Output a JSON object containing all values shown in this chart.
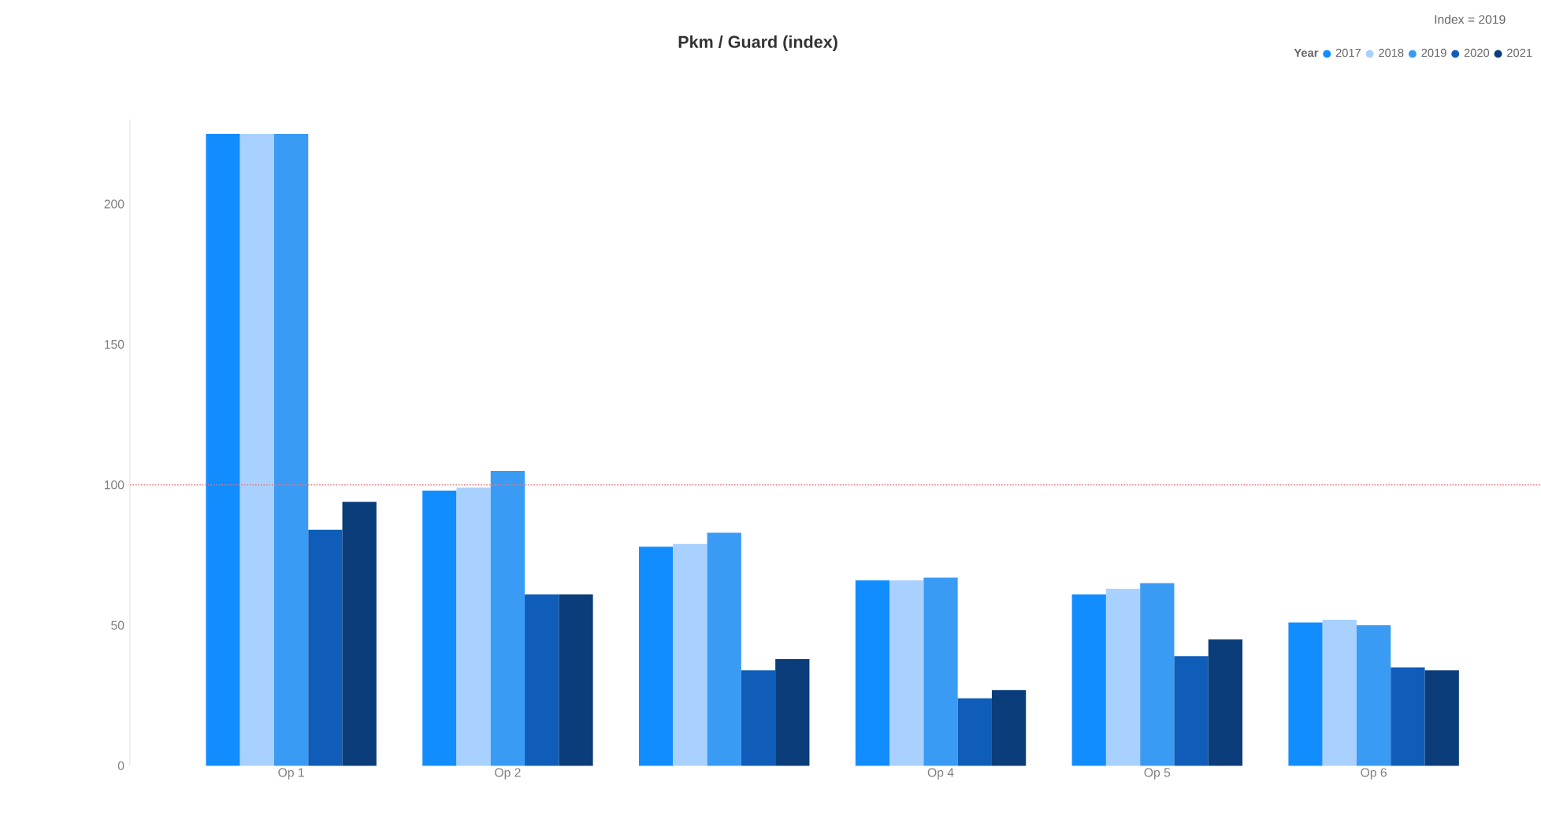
{
  "chart_data": {
    "type": "bar",
    "title": "Pkm / Guard (index)",
    "annotations": [
      "Index = 2019"
    ],
    "categories": [
      "Op 1",
      "Op 2",
      null,
      "Op 4",
      "Op 5",
      "Op 6"
    ],
    "legend_title": "Year",
    "legend": "top right",
    "series": [
      {
        "name": "2017",
        "color": "#118dff",
        "values": [
          225,
          98,
          78,
          66,
          61,
          51
        ]
      },
      {
        "name": "2018",
        "color": "#a9d1ff",
        "values": [
          225,
          99,
          79,
          66,
          63,
          52
        ]
      },
      {
        "name": "2019",
        "color": "#3a9bf5",
        "values": [
          225,
          105,
          83,
          67,
          65,
          50
        ]
      },
      {
        "name": "2020",
        "color": "#0f5db8",
        "values": [
          84,
          61,
          34,
          24,
          39,
          35
        ]
      },
      {
        "name": "2021",
        "color": "#0a3d7a",
        "values": [
          94,
          61,
          38,
          27,
          45,
          34
        ]
      }
    ],
    "ylim": [
      0,
      230
    ],
    "yticks": [
      0,
      50,
      100,
      150,
      200
    ],
    "ref_lines": [
      {
        "axis": "y",
        "value": 100,
        "color": "#e8787c",
        "line_style": "dotted"
      }
    ]
  }
}
